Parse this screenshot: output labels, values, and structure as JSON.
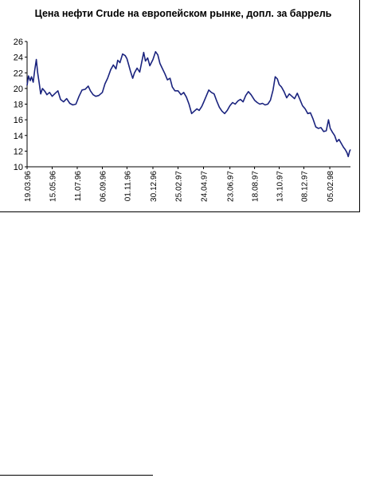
{
  "colors": {
    "line": "#1a237e",
    "axis": "#000000",
    "background": "#ffffff"
  },
  "chart_data": {
    "type": "line",
    "title": "Цена нефти Crude на европейском рынке, допл. за баррель",
    "xlabel": "",
    "ylabel": "",
    "ylim": [
      10,
      26
    ],
    "yticks": [
      10,
      12,
      14,
      16,
      18,
      20,
      22,
      24,
      26
    ],
    "xlim": [
      "1996-03-19",
      "1998-03-24"
    ],
    "xticks": [
      "19.03.96",
      "15.05.96",
      "11.07.96",
      "06.09.96",
      "01.11.96",
      "30.12.96",
      "25.02.97",
      "24.04.97",
      "23.06.97",
      "18.08.97",
      "13.10.97",
      "08.12.97",
      "05.02.98"
    ],
    "grid": false,
    "legend": "none",
    "series": [
      {
        "name": "",
        "points": [
          [
            "1996-03-19",
            20.4
          ],
          [
            "1996-03-22",
            21.6
          ],
          [
            "1996-03-26",
            21.0
          ],
          [
            "1996-03-29",
            21.5
          ],
          [
            "1996-04-02",
            20.8
          ],
          [
            "1996-04-05",
            22.2
          ],
          [
            "1996-04-09",
            23.7
          ],
          [
            "1996-04-12",
            22.0
          ],
          [
            "1996-04-16",
            20.5
          ],
          [
            "1996-04-19",
            19.3
          ],
          [
            "1996-04-23",
            20.0
          ],
          [
            "1996-04-29",
            19.6
          ],
          [
            "1996-05-03",
            19.2
          ],
          [
            "1996-05-09",
            19.5
          ],
          [
            "1996-05-15",
            19.0
          ],
          [
            "1996-05-22",
            19.4
          ],
          [
            "1996-05-28",
            19.7
          ],
          [
            "1996-06-03",
            18.6
          ],
          [
            "1996-06-10",
            18.3
          ],
          [
            "1996-06-17",
            18.7
          ],
          [
            "1996-06-24",
            18.1
          ],
          [
            "1996-07-01",
            17.9
          ],
          [
            "1996-07-08",
            18.0
          ],
          [
            "1996-07-15",
            19.0
          ],
          [
            "1996-07-22",
            19.8
          ],
          [
            "1996-07-29",
            19.9
          ],
          [
            "1996-08-05",
            20.3
          ],
          [
            "1996-08-10",
            19.7
          ],
          [
            "1996-08-16",
            19.2
          ],
          [
            "1996-08-22",
            19.0
          ],
          [
            "1996-08-29",
            19.1
          ],
          [
            "1996-09-06",
            19.5
          ],
          [
            "1996-09-12",
            20.6
          ],
          [
            "1996-09-18",
            21.3
          ],
          [
            "1996-09-25",
            22.4
          ],
          [
            "1996-10-01",
            23.0
          ],
          [
            "1996-10-07",
            22.5
          ],
          [
            "1996-10-11",
            23.6
          ],
          [
            "1996-10-16",
            23.3
          ],
          [
            "1996-10-22",
            24.4
          ],
          [
            "1996-10-28",
            24.2
          ],
          [
            "1996-11-01",
            23.8
          ],
          [
            "1996-11-05",
            23.0
          ],
          [
            "1996-11-09",
            22.2
          ],
          [
            "1996-11-14",
            21.3
          ],
          [
            "1996-11-18",
            22.0
          ],
          [
            "1996-11-24",
            22.6
          ],
          [
            "1996-11-30",
            22.1
          ],
          [
            "1996-12-04",
            23.2
          ],
          [
            "1996-12-09",
            24.6
          ],
          [
            "1996-12-13",
            23.5
          ],
          [
            "1996-12-18",
            23.9
          ],
          [
            "1996-12-23",
            22.9
          ],
          [
            "1996-12-30",
            23.7
          ],
          [
            "1997-01-05",
            24.7
          ],
          [
            "1997-01-10",
            24.3
          ],
          [
            "1997-01-15",
            23.2
          ],
          [
            "1997-01-20",
            22.6
          ],
          [
            "1997-01-26",
            21.9
          ],
          [
            "1997-02-01",
            21.1
          ],
          [
            "1997-02-07",
            21.3
          ],
          [
            "1997-02-12",
            20.2
          ],
          [
            "1997-02-18",
            19.7
          ],
          [
            "1997-02-25",
            19.7
          ],
          [
            "1997-03-04",
            19.2
          ],
          [
            "1997-03-10",
            19.5
          ],
          [
            "1997-03-16",
            18.9
          ],
          [
            "1997-03-22",
            18.0
          ],
          [
            "1997-03-28",
            16.8
          ],
          [
            "1997-04-03",
            17.1
          ],
          [
            "1997-04-09",
            17.4
          ],
          [
            "1997-04-14",
            17.2
          ],
          [
            "1997-04-20",
            17.7
          ],
          [
            "1997-04-24",
            18.2
          ],
          [
            "1997-04-30",
            19.0
          ],
          [
            "1997-05-06",
            19.8
          ],
          [
            "1997-05-12",
            19.5
          ],
          [
            "1997-05-18",
            19.3
          ],
          [
            "1997-05-24",
            18.4
          ],
          [
            "1997-05-30",
            17.6
          ],
          [
            "1997-06-05",
            17.1
          ],
          [
            "1997-06-11",
            16.8
          ],
          [
            "1997-06-17",
            17.2
          ],
          [
            "1997-06-23",
            17.8
          ],
          [
            "1997-06-29",
            18.2
          ],
          [
            "1997-07-05",
            18.0
          ],
          [
            "1997-07-11",
            18.4
          ],
          [
            "1997-07-17",
            18.6
          ],
          [
            "1997-07-23",
            18.3
          ],
          [
            "1997-07-29",
            19.1
          ],
          [
            "1997-08-04",
            19.6
          ],
          [
            "1997-08-10",
            19.2
          ],
          [
            "1997-08-18",
            18.5
          ],
          [
            "1997-08-24",
            18.2
          ],
          [
            "1997-08-30",
            18.0
          ],
          [
            "1997-09-05",
            18.1
          ],
          [
            "1997-09-11",
            17.9
          ],
          [
            "1997-09-17",
            18.0
          ],
          [
            "1997-09-23",
            18.5
          ],
          [
            "1997-09-29",
            19.8
          ],
          [
            "1997-10-04",
            21.5
          ],
          [
            "1997-10-09",
            21.2
          ],
          [
            "1997-10-13",
            20.5
          ],
          [
            "1997-10-18",
            20.2
          ],
          [
            "1997-10-24",
            19.6
          ],
          [
            "1997-10-30",
            18.8
          ],
          [
            "1997-11-05",
            19.3
          ],
          [
            "1997-11-11",
            19.0
          ],
          [
            "1997-11-17",
            18.7
          ],
          [
            "1997-11-23",
            19.4
          ],
          [
            "1997-11-29",
            18.6
          ],
          [
            "1997-12-05",
            17.8
          ],
          [
            "1997-12-11",
            17.4
          ],
          [
            "1997-12-17",
            16.8
          ],
          [
            "1997-12-23",
            16.9
          ],
          [
            "1997-12-29",
            16.1
          ],
          [
            "1998-01-04",
            15.1
          ],
          [
            "1998-01-10",
            14.9
          ],
          [
            "1998-01-16",
            15.0
          ],
          [
            "1998-01-22",
            14.5
          ],
          [
            "1998-01-28",
            14.6
          ],
          [
            "1998-02-02",
            16.0
          ],
          [
            "1998-02-06",
            14.9
          ],
          [
            "1998-02-11",
            14.4
          ],
          [
            "1998-02-16",
            14.0
          ],
          [
            "1998-02-21",
            13.2
          ],
          [
            "1998-02-26",
            13.5
          ],
          [
            "1998-03-03",
            13.0
          ],
          [
            "1998-03-08",
            12.5
          ],
          [
            "1998-03-12",
            12.2
          ],
          [
            "1998-03-16",
            11.8
          ],
          [
            "1998-03-19",
            11.3
          ],
          [
            "1998-03-22",
            12.0
          ],
          [
            "1998-03-24",
            12.2
          ]
        ]
      }
    ]
  }
}
